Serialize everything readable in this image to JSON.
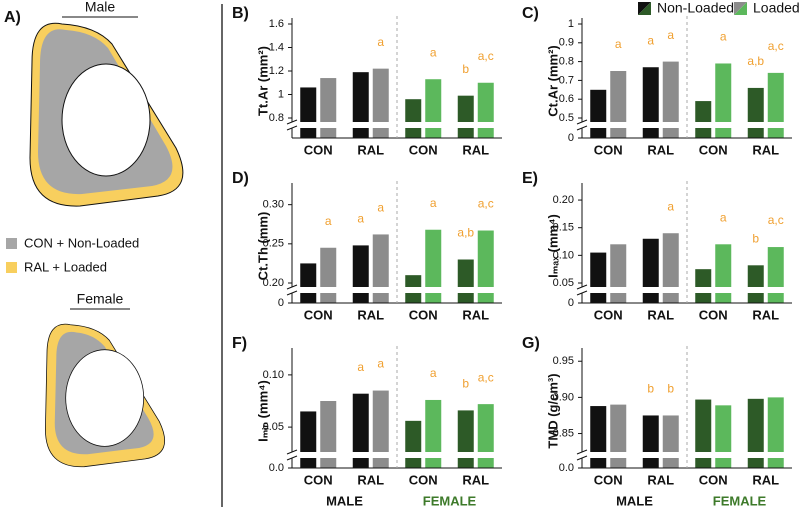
{
  "panel_a": {
    "label": "A)",
    "male": "Male",
    "female": "Female",
    "legend": [
      {
        "name": "CON + Non-Loaded",
        "color": "#a6a6a6"
      },
      {
        "name": "RAL + Loaded",
        "color": "#f8cf5e"
      }
    ]
  },
  "chart_data": [
    {
      "type": "bar",
      "title": "B)",
      "ylabel": "Tt.Ar (mm²)",
      "categories": [
        "CON",
        "RAL",
        "CON",
        "RAL"
      ],
      "ylim": [
        0.8,
        1.6
      ],
      "yticks": [
        0.8,
        1.0,
        1.2,
        1.4,
        1.6
      ],
      "annotation_color": "#f0a030",
      "series": [
        {
          "name": "Non-Loaded",
          "colors": [
            "#111111",
            "#2d5a27"
          ],
          "values": [
            1.06,
            1.19,
            0.96,
            0.99
          ],
          "annotations": [
            null,
            null,
            null,
            "b"
          ]
        },
        {
          "name": "Loaded",
          "colors": [
            "#8c8c8c",
            "#5cb85c"
          ],
          "values": [
            1.14,
            1.22,
            1.13,
            1.1
          ],
          "annotations": [
            null,
            "a",
            "a",
            "a,c"
          ]
        }
      ]
    },
    {
      "type": "bar",
      "title": "C)",
      "ylabel": "Ct.Ar (mm²)",
      "categories": [
        "CON",
        "RAL",
        "CON",
        "RAL"
      ],
      "ylim": [
        0.5,
        1.0
      ],
      "yticks": [
        0.5,
        0.6,
        0.7,
        0.8,
        0.9,
        1.0
      ],
      "break_ticks": [
        0
      ],
      "legend": true,
      "annotation_color": "#f0a030",
      "series": [
        {
          "name": "Non-Loaded",
          "colors": [
            "#111111",
            "#2d5a27"
          ],
          "values": [
            0.65,
            0.77,
            0.59,
            0.66
          ],
          "annotations": [
            null,
            "a",
            null,
            "a,b"
          ]
        },
        {
          "name": "Loaded",
          "colors": [
            "#8c8c8c",
            "#5cb85c"
          ],
          "values": [
            0.75,
            0.8,
            0.79,
            0.74
          ],
          "annotations": [
            "a",
            "a",
            "a",
            "a,c"
          ]
        }
      ]
    },
    {
      "type": "bar",
      "title": "D)",
      "ylabel": "Ct.Th (mm)",
      "categories": [
        "CON",
        "RAL",
        "CON",
        "RAL"
      ],
      "ylim": [
        0.2,
        0.32
      ],
      "yticks": [
        {
          "value": 0.2,
          "label": "0.20"
        },
        0.25,
        {
          "value": 0.3,
          "label": "0.30"
        }
      ],
      "break_ticks": [
        0
      ],
      "annotation_color": "#f0a030",
      "series": [
        {
          "name": "Non-Loaded",
          "colors": [
            "#111111",
            "#2d5a27"
          ],
          "values": [
            0.225,
            0.248,
            0.21,
            0.23
          ],
          "annotations": [
            null,
            "a",
            null,
            "a,b"
          ]
        },
        {
          "name": "Loaded",
          "colors": [
            "#8c8c8c",
            "#5cb85c"
          ],
          "values": [
            0.245,
            0.262,
            0.268,
            0.267
          ],
          "annotations": [
            "a",
            "a",
            "a",
            "a,c"
          ]
        }
      ]
    },
    {
      "type": "bar",
      "title": "E)",
      "ylabel": "Iₘₐₓ (mm⁴)",
      "categories": [
        "CON",
        "RAL",
        "CON",
        "RAL"
      ],
      "ylim": [
        0.05,
        0.22
      ],
      "yticks": [
        0.05,
        {
          "value": 0.1,
          "label": "0.10"
        },
        0.15,
        {
          "value": 0.2,
          "label": "0.20"
        }
      ],
      "break_ticks": [
        0
      ],
      "annotation_color": "#f0a030",
      "series": [
        {
          "name": "Non-Loaded",
          "colors": [
            "#111111",
            "#2d5a27"
          ],
          "values": [
            0.105,
            0.13,
            0.075,
            0.082
          ],
          "annotations": [
            null,
            null,
            null,
            "b"
          ]
        },
        {
          "name": "Loaded",
          "colors": [
            "#8c8c8c",
            "#5cb85c"
          ],
          "values": [
            0.12,
            0.14,
            0.12,
            0.115
          ],
          "annotations": [
            null,
            "a",
            "a",
            "a,c"
          ]
        }
      ]
    },
    {
      "type": "bar",
      "title": "F)",
      "ylabel": "Iₘᵢₙ (mm⁴)",
      "categories": [
        "CON",
        "RAL",
        "CON",
        "RAL"
      ],
      "groups": [
        "MALE",
        "FEMALE"
      ],
      "group_colors": [
        "#111111",
        "#3d7a2a"
      ],
      "ylim": [
        0.03,
        0.12
      ],
      "yticks": [
        0.05,
        {
          "value": 0.1,
          "label": "0.10"
        }
      ],
      "break_ticks": [
        {
          "value": 0,
          "label": "0.0"
        }
      ],
      "annotation_color": "#f0a030",
      "series": [
        {
          "name": "Non-Loaded",
          "colors": [
            "#111111",
            "#2d5a27"
          ],
          "values": [
            0.065,
            0.082,
            0.056,
            0.066
          ],
          "annotations": [
            null,
            "a",
            null,
            "b"
          ]
        },
        {
          "name": "Loaded",
          "colors": [
            "#8c8c8c",
            "#5cb85c"
          ],
          "values": [
            0.075,
            0.085,
            0.076,
            0.072
          ],
          "annotations": [
            null,
            "a",
            "a",
            "a,c"
          ]
        }
      ]
    },
    {
      "type": "bar",
      "title": "G)",
      "ylabel": "TMD (g/cm³)",
      "categories": [
        "CON",
        "RAL",
        "CON",
        "RAL"
      ],
      "groups": [
        "MALE",
        "FEMALE"
      ],
      "group_colors": [
        "#111111",
        "#3d7a2a"
      ],
      "ylim": [
        0.83,
        0.96
      ],
      "yticks": [
        0.85,
        {
          "value": 0.9,
          "label": "0.90"
        },
        0.95
      ],
      "break_ticks": [
        {
          "value": 0,
          "label": "0.0"
        }
      ],
      "annotation_color": "#f0a030",
      "series": [
        {
          "name": "Non-Loaded",
          "colors": [
            "#111111",
            "#2d5a27"
          ],
          "values": [
            0.888,
            0.875,
            0.897,
            0.898
          ],
          "annotations": [
            null,
            "b",
            null,
            null
          ]
        },
        {
          "name": "Loaded",
          "colors": [
            "#8c8c8c",
            "#5cb85c"
          ],
          "values": [
            0.89,
            0.875,
            0.889,
            0.9
          ],
          "annotations": [
            null,
            "b",
            null,
            null
          ]
        }
      ]
    }
  ]
}
